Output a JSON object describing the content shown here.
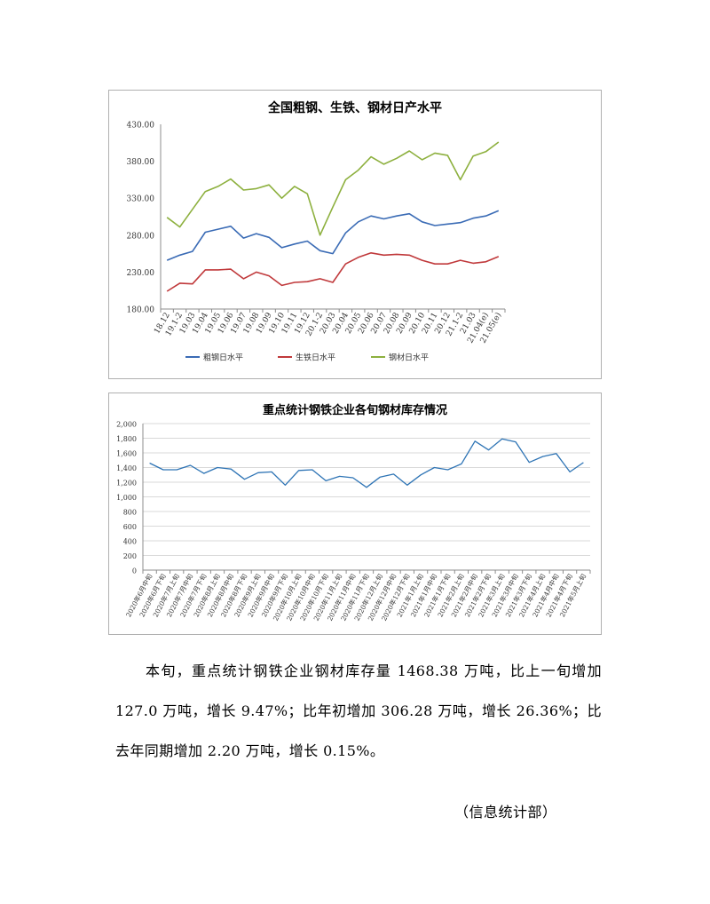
{
  "charts": [
    {
      "type": "line",
      "title": "全国粗钢、生铁、钢材日产水平",
      "categories": [
        "18.12",
        "19.1-2",
        "19.03",
        "19.04",
        "19.05",
        "19.06",
        "19.07",
        "19.08",
        "19.09",
        "19.10",
        "19.11",
        "19.12",
        "20.1-2",
        "20.03",
        "20.04",
        "20.05",
        "20.06",
        "20.07",
        "20.08",
        "20.09",
        "20.10",
        "20.11",
        "20.12",
        "21.1-2",
        "21.03",
        "21.04(e)",
        "21.05(e)"
      ],
      "ylim": [
        180,
        430
      ],
      "yticks": [
        "180.00",
        "230.00",
        "280.00",
        "330.00",
        "380.00",
        "430.00"
      ],
      "series": [
        {
          "name": "粗钢日水平",
          "color": "#3a6bb5",
          "values": [
            246,
            253,
            258,
            284,
            288,
            292,
            276,
            282,
            277,
            263,
            268,
            272,
            259,
            255,
            283,
            298,
            306,
            302,
            306,
            309,
            298,
            293,
            295,
            297,
            303,
            306,
            313
          ]
        },
        {
          "name": "生铁日水平",
          "color": "#c0393b",
          "values": [
            204,
            215,
            214,
            233,
            233,
            234,
            221,
            230,
            225,
            212,
            216,
            217,
            221,
            216,
            241,
            250,
            256,
            253,
            254,
            253,
            246,
            241,
            241,
            246,
            242,
            244,
            251
          ]
        },
        {
          "name": "钢材日水平",
          "color": "#8db03e",
          "values": [
            304,
            291,
            315,
            339,
            346,
            356,
            341,
            343,
            348,
            330,
            346,
            336,
            280,
            318,
            355,
            368,
            386,
            376,
            384,
            394,
            382,
            391,
            388,
            355,
            387,
            393,
            406
          ]
        }
      ],
      "legend": "bottom",
      "grid": false
    },
    {
      "type": "line",
      "title": "重点统计钢铁企业各旬钢材库存情况",
      "categories": [
        "2020年6月中旬",
        "2020年6月下旬",
        "2020年7月上旬",
        "2020年7月中旬",
        "2020年7月下旬",
        "2020年8月上旬",
        "2020年8月中旬",
        "2020年8月下旬",
        "2020年9月上旬",
        "2020年9月中旬",
        "2020年9月下旬",
        "2020年10月上旬",
        "2020年10月中旬",
        "2020年10月下旬",
        "2020年11月上旬",
        "2020年11月中旬",
        "2020年11月下旬",
        "2020年12月上旬",
        "2020年12月中旬",
        "2020年12月下旬",
        "2021年1月上旬",
        "2021年1月中旬",
        "2021年1月下旬",
        "2021年2月上旬",
        "2021年2月中旬",
        "2021年2月下旬",
        "2021年3月上旬",
        "2021年3月中旬",
        "2021年3月下旬",
        "2021年4月上旬",
        "2021年4月中旬",
        "2021年4月下旬",
        "2021年5月上旬"
      ],
      "ylim": [
        0,
        2000
      ],
      "yticks": [
        "0",
        "200",
        "400",
        "600",
        "800",
        "1,000",
        "1,200",
        "1,400",
        "1,600",
        "1,800",
        "2,000"
      ],
      "series": [
        {
          "color": "#2e74b5",
          "values": [
            1460,
            1370,
            1370,
            1430,
            1320,
            1400,
            1380,
            1240,
            1330,
            1340,
            1160,
            1360,
            1370,
            1220,
            1280,
            1260,
            1130,
            1270,
            1310,
            1160,
            1300,
            1400,
            1370,
            1450,
            1760,
            1640,
            1790,
            1750,
            1470,
            1550,
            1590,
            1340,
            1468
          ]
        }
      ],
      "grid": true
    }
  ],
  "text": {
    "paragraph": "本旬，重点统计钢铁企业钢材库存量 1468.38 万吨，比上一旬增加 127.0 万吨，增长 9.47%；比年初增加 306.28 万吨，增长 26.36%；比去年同期增加 2.20 万吨，增长 0.15%。",
    "signature": "（信息统计部）"
  }
}
